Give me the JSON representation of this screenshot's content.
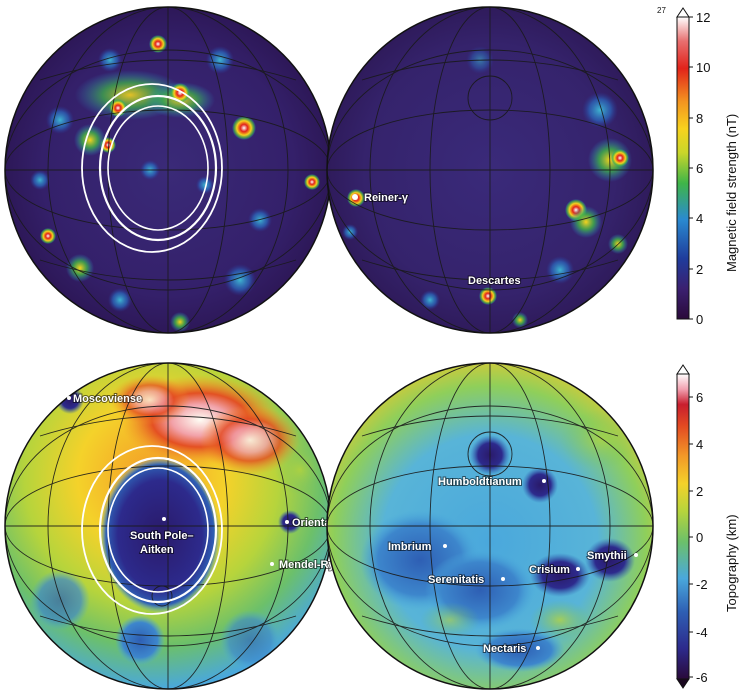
{
  "colors": {
    "magnetic_scale": [
      "#2a0a3a",
      "#3b2070",
      "#1f3c9c",
      "#2a8ad0",
      "#3fb548",
      "#c9d62a",
      "#f7d21e",
      "#f39420",
      "#e2231a",
      "#e86f6f",
      "#ffffff"
    ],
    "topo_scale": [
      "#2a0a3a",
      "#2d2a8c",
      "#2e5fb4",
      "#4aa8dc",
      "#6cc06a",
      "#b6d43c",
      "#f4d22a",
      "#f39a28",
      "#e34a22",
      "#c81e2e",
      "#f2a0b0",
      "#ffffff"
    ],
    "grid": "#1a1a1a",
    "ring": "#ffffff"
  },
  "magnetic_map": {
    "labels": {
      "reiner": "Reiner-γ",
      "descartes": "Descartes"
    },
    "colorbar": {
      "title": "Magnetic field strength (nT)",
      "ticks": [
        "0",
        "2",
        "4",
        "6",
        "8",
        "10",
        "12"
      ],
      "max_note": "27"
    }
  },
  "topography_map": {
    "labels": {
      "moscoviense": "Moscoviense",
      "spa_line1": "South Pole–",
      "spa_line2": "Aitken",
      "orientale": "Orientale",
      "mendel": "Mendel-Rydberg",
      "humboldtianum": "Humboldtianum",
      "imbrium": "Imbrium",
      "serenitatis": "Serenitatis",
      "crisium": "Crisium",
      "smythii": "Smythii",
      "nectaris": "Nectaris"
    },
    "colorbar": {
      "title": "Topography (km)",
      "ticks": [
        "-6",
        "-4",
        "-2",
        "0",
        "2",
        "4",
        "6"
      ]
    }
  }
}
